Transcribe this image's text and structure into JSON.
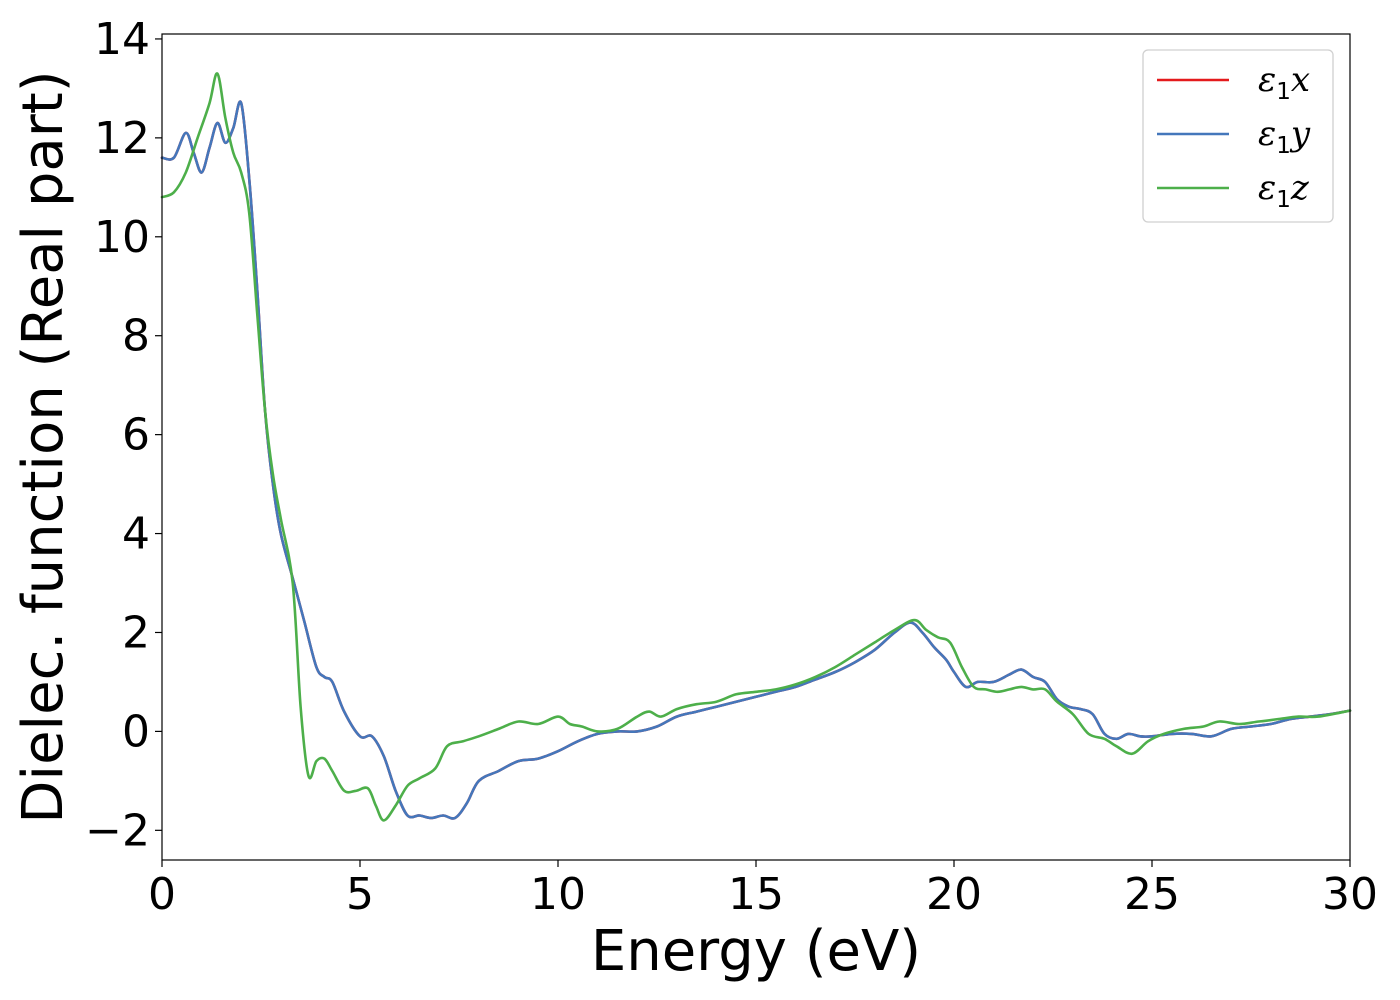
{
  "chart_data": {
    "type": "line",
    "xlabel": "Energy (eV)",
    "ylabel": "Dielec. function (Real part)",
    "xlim": [
      0,
      30
    ],
    "ylim": [
      -2.6,
      14.1
    ],
    "xticks": [
      0,
      5,
      10,
      15,
      20,
      25,
      30
    ],
    "yticks": [
      -2,
      0,
      2,
      4,
      6,
      8,
      10,
      12,
      14
    ],
    "xtick_labels": [
      "0",
      "5",
      "10",
      "15",
      "20",
      "25",
      "30"
    ],
    "ytick_labels": [
      "−2",
      "0",
      "2",
      "4",
      "6",
      "8",
      "10",
      "12",
      "14"
    ],
    "grid": false,
    "legend_position": "top-right",
    "series": [
      {
        "name": "ε1x",
        "legend": {
          "symbol": "ε",
          "sub": "1",
          "var": "x"
        },
        "color": "#e41a1c",
        "x": [
          0,
          0.3,
          0.6,
          0.8,
          1.0,
          1.2,
          1.4,
          1.6,
          1.8,
          2.0,
          2.2,
          2.4,
          2.6,
          2.8,
          3.0,
          3.3,
          3.6,
          3.9,
          4.1,
          4.3,
          4.6,
          5.0,
          5.3,
          5.6,
          5.9,
          6.2,
          6.5,
          6.8,
          7.1,
          7.4,
          7.7,
          8.0,
          8.5,
          9.0,
          9.5,
          10.0,
          10.5,
          11.0,
          11.5,
          12.0,
          12.5,
          13.0,
          13.5,
          14.0,
          14.5,
          15.0,
          15.5,
          16.0,
          16.5,
          17.0,
          17.5,
          18.0,
          18.5,
          18.9,
          19.2,
          19.5,
          19.8,
          20.0,
          20.3,
          20.6,
          21.0,
          21.4,
          21.7,
          22.0,
          22.3,
          22.6,
          22.9,
          23.2,
          23.5,
          23.8,
          24.1,
          24.4,
          24.7,
          25.0,
          25.5,
          26.0,
          26.5,
          27.0,
          27.5,
          28.0,
          28.5,
          29.0,
          29.5,
          30.0
        ],
        "y": [
          11.6,
          11.6,
          12.1,
          11.7,
          11.3,
          11.8,
          12.3,
          11.9,
          12.2,
          12.7,
          11.2,
          9.0,
          6.5,
          5.0,
          4.0,
          3.1,
          2.2,
          1.3,
          1.1,
          1.0,
          0.4,
          -0.1,
          -0.1,
          -0.5,
          -1.2,
          -1.7,
          -1.7,
          -1.75,
          -1.7,
          -1.75,
          -1.45,
          -1.0,
          -0.8,
          -0.6,
          -0.55,
          -0.4,
          -0.2,
          -0.05,
          0.0,
          0.0,
          0.1,
          0.3,
          0.4,
          0.5,
          0.6,
          0.7,
          0.8,
          0.9,
          1.05,
          1.2,
          1.4,
          1.65,
          2.0,
          2.2,
          2.0,
          1.7,
          1.45,
          1.2,
          0.9,
          1.0,
          1.0,
          1.15,
          1.25,
          1.1,
          1.0,
          0.65,
          0.5,
          0.45,
          0.35,
          -0.05,
          -0.15,
          -0.05,
          -0.1,
          -0.1,
          -0.05,
          -0.05,
          -0.1,
          0.05,
          0.1,
          0.15,
          0.25,
          0.3,
          0.35,
          0.42
        ]
      },
      {
        "name": "ε1y",
        "legend": {
          "symbol": "ε",
          "sub": "1",
          "var": "y"
        },
        "color": "#4477bb",
        "x": [
          0,
          0.3,
          0.6,
          0.8,
          1.0,
          1.2,
          1.4,
          1.6,
          1.8,
          2.0,
          2.2,
          2.4,
          2.6,
          2.8,
          3.0,
          3.3,
          3.6,
          3.9,
          4.1,
          4.3,
          4.6,
          5.0,
          5.3,
          5.6,
          5.9,
          6.2,
          6.5,
          6.8,
          7.1,
          7.4,
          7.7,
          8.0,
          8.5,
          9.0,
          9.5,
          10.0,
          10.5,
          11.0,
          11.5,
          12.0,
          12.5,
          13.0,
          13.5,
          14.0,
          14.5,
          15.0,
          15.5,
          16.0,
          16.5,
          17.0,
          17.5,
          18.0,
          18.5,
          18.9,
          19.2,
          19.5,
          19.8,
          20.0,
          20.3,
          20.6,
          21.0,
          21.4,
          21.7,
          22.0,
          22.3,
          22.6,
          22.9,
          23.2,
          23.5,
          23.8,
          24.1,
          24.4,
          24.7,
          25.0,
          25.5,
          26.0,
          26.5,
          27.0,
          27.5,
          28.0,
          28.5,
          29.0,
          29.5,
          30.0
        ],
        "y": [
          11.6,
          11.6,
          12.1,
          11.7,
          11.3,
          11.8,
          12.3,
          11.9,
          12.2,
          12.7,
          11.2,
          9.0,
          6.5,
          5.0,
          4.0,
          3.1,
          2.2,
          1.3,
          1.1,
          1.0,
          0.4,
          -0.1,
          -0.1,
          -0.5,
          -1.2,
          -1.7,
          -1.7,
          -1.75,
          -1.7,
          -1.75,
          -1.45,
          -1.0,
          -0.8,
          -0.6,
          -0.55,
          -0.4,
          -0.2,
          -0.05,
          0.0,
          0.0,
          0.1,
          0.3,
          0.4,
          0.5,
          0.6,
          0.7,
          0.8,
          0.9,
          1.05,
          1.2,
          1.4,
          1.65,
          2.0,
          2.2,
          2.0,
          1.7,
          1.45,
          1.2,
          0.9,
          1.0,
          1.0,
          1.15,
          1.25,
          1.1,
          1.0,
          0.65,
          0.5,
          0.45,
          0.35,
          -0.05,
          -0.15,
          -0.05,
          -0.1,
          -0.1,
          -0.05,
          -0.05,
          -0.1,
          0.05,
          0.1,
          0.15,
          0.25,
          0.3,
          0.35,
          0.42
        ]
      },
      {
        "name": "ε1z",
        "legend": {
          "symbol": "ε",
          "sub": "1",
          "var": "z"
        },
        "color": "#4daf4a",
        "x": [
          0,
          0.3,
          0.6,
          0.9,
          1.2,
          1.4,
          1.6,
          1.8,
          2.0,
          2.2,
          2.4,
          2.6,
          2.8,
          3.0,
          3.3,
          3.5,
          3.7,
          3.9,
          4.1,
          4.3,
          4.6,
          4.9,
          5.2,
          5.4,
          5.6,
          5.9,
          6.2,
          6.5,
          6.9,
          7.2,
          7.6,
          8.0,
          8.5,
          9.0,
          9.5,
          10.0,
          10.3,
          10.6,
          11.0,
          11.5,
          12.0,
          12.3,
          12.6,
          13.0,
          13.5,
          14.0,
          14.5,
          15.0,
          15.5,
          16.0,
          16.5,
          17.0,
          17.5,
          18.0,
          18.5,
          19.0,
          19.3,
          19.6,
          19.9,
          20.2,
          20.5,
          20.8,
          21.1,
          21.4,
          21.7,
          22.0,
          22.3,
          22.6,
          23.0,
          23.4,
          23.8,
          24.1,
          24.5,
          24.9,
          25.3,
          25.8,
          26.3,
          26.7,
          27.2,
          27.7,
          28.2,
          28.7,
          29.2,
          30.0
        ],
        "y": [
          10.8,
          10.9,
          11.3,
          12.0,
          12.7,
          13.3,
          12.4,
          11.7,
          11.3,
          10.5,
          8.5,
          6.5,
          5.2,
          4.3,
          3.0,
          0.5,
          -0.9,
          -0.6,
          -0.55,
          -0.8,
          -1.2,
          -1.2,
          -1.15,
          -1.5,
          -1.8,
          -1.5,
          -1.1,
          -0.95,
          -0.75,
          -0.3,
          -0.2,
          -0.1,
          0.05,
          0.2,
          0.15,
          0.3,
          0.15,
          0.1,
          0.0,
          0.05,
          0.3,
          0.4,
          0.3,
          0.45,
          0.55,
          0.6,
          0.75,
          0.8,
          0.85,
          0.95,
          1.1,
          1.3,
          1.55,
          1.8,
          2.05,
          2.25,
          2.05,
          1.9,
          1.8,
          1.3,
          0.9,
          0.85,
          0.8,
          0.85,
          0.9,
          0.85,
          0.85,
          0.6,
          0.35,
          -0.05,
          -0.15,
          -0.3,
          -0.45,
          -0.2,
          -0.05,
          0.05,
          0.1,
          0.2,
          0.15,
          0.2,
          0.25,
          0.3,
          0.3,
          0.42
        ]
      }
    ]
  }
}
